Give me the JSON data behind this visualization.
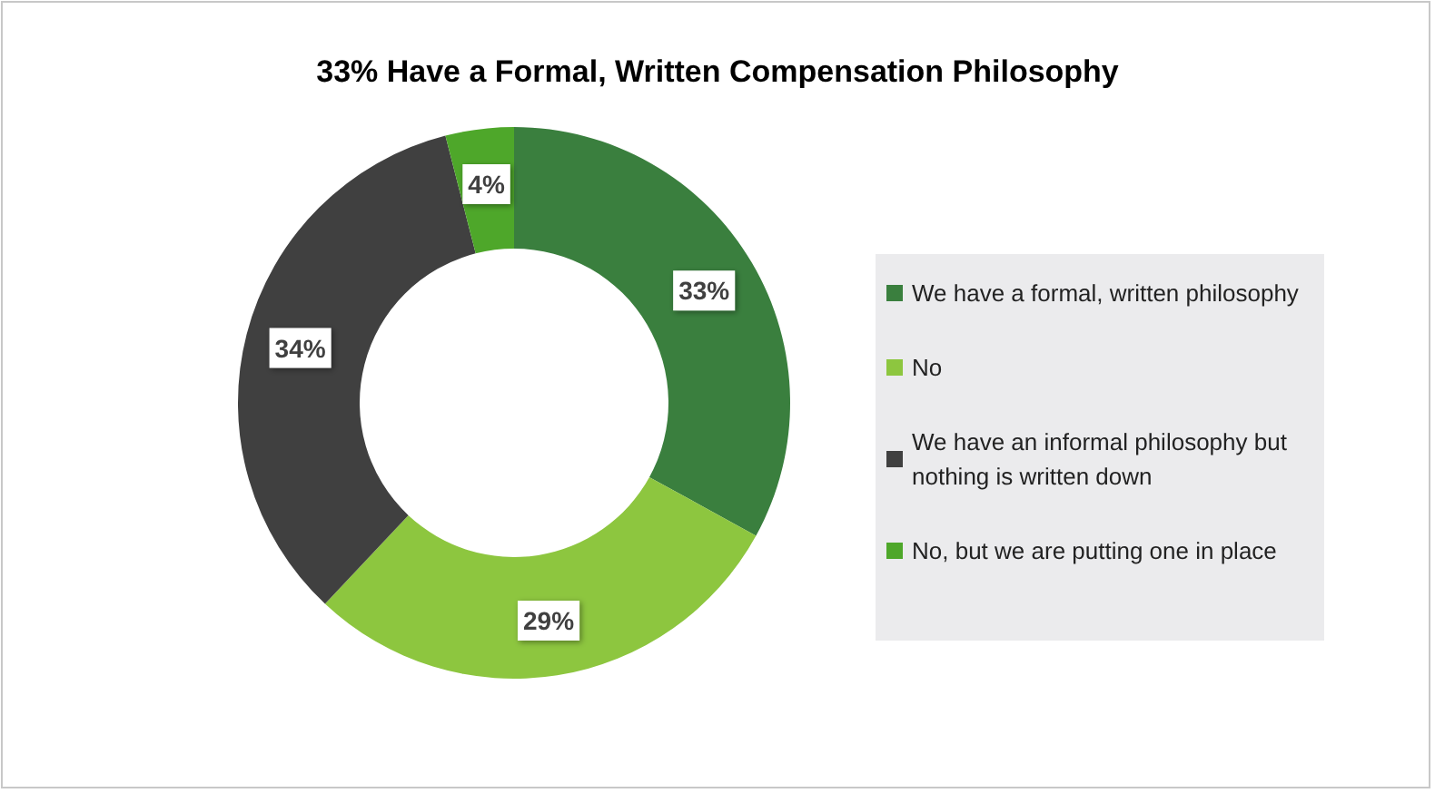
{
  "chart_data": {
    "type": "donut",
    "title": "33% Have a Formal, Written Compensation Philosophy",
    "categories": [
      "We have a formal, written philosophy",
      "No",
      "We have an informal philosophy but nothing is written down",
      "No, but we are putting one in place"
    ],
    "values": [
      33,
      29,
      34,
      4
    ],
    "colors": [
      "#3a7f3e",
      "#8dc63f",
      "#404040",
      "#4ea72a"
    ],
    "value_labels": [
      "33%",
      "29%",
      "34%",
      "4%"
    ],
    "legend": "right"
  }
}
